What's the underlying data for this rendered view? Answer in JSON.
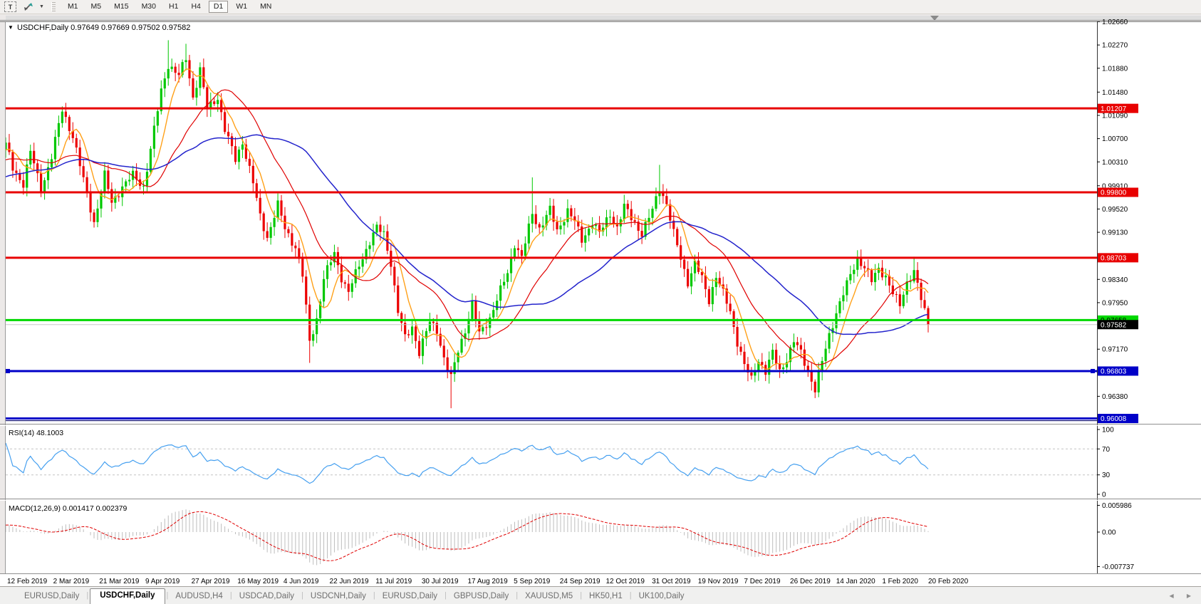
{
  "toolbar": {
    "text_tool_label": "T",
    "arrange_tool": "arrange-windows",
    "timeframes": [
      "M1",
      "M5",
      "M15",
      "M30",
      "H1",
      "H4",
      "D1",
      "W1",
      "MN"
    ],
    "active_timeframe": "D1"
  },
  "window": {
    "title_symbol": "USDCHF,Daily",
    "ohlc": {
      "open": "0.97649",
      "high": "0.97669",
      "low": "0.97502",
      "close": "0.97582"
    }
  },
  "chart_data": {
    "type": "candlestick",
    "symbol": "USDCHF",
    "timeframe": "Daily",
    "ylim": {
      "top": 1.02642,
      "bottom": 0.95919
    },
    "y_ticks": [
      "1.02660",
      "1.02270",
      "1.01880",
      "1.01480",
      "1.01090",
      "1.00700",
      "1.00310",
      "0.99910",
      "0.99520",
      "0.99130",
      "0.98340",
      "0.97950",
      "0.97170",
      "0.96380"
    ],
    "x_dates": [
      "12 Feb 2019",
      "2 Mar 2019",
      "21 Mar 2019",
      "9 Apr 2019",
      "27 Apr 2019",
      "16 May 2019",
      "4 Jun 2019",
      "22 Jun 2019",
      "11 Jul 2019",
      "30 Jul 2019",
      "17 Aug 2019",
      "5 Sep 2019",
      "24 Sep 2019",
      "12 Oct 2019",
      "31 Oct 2019",
      "19 Nov 2019",
      "7 Dec 2019",
      "26 Dec 2019",
      "14 Jan 2020",
      "1 Feb 2020",
      "20 Feb 2020"
    ],
    "candle_count": 262,
    "up_color": "#00C800",
    "down_color": "#EC0000",
    "anchors": [
      [
        0,
        1.006
      ],
      [
        2,
        1.002
      ],
      [
        5,
        0.9995
      ],
      [
        7,
        1.0048
      ],
      [
        10,
        0.9985
      ],
      [
        13,
        1.004
      ],
      [
        16,
        1.0118
      ],
      [
        19,
        1.0075
      ],
      [
        22,
        1.0
      ],
      [
        25,
        0.993
      ],
      [
        28,
        1.0008
      ],
      [
        30,
        0.9962
      ],
      [
        33,
        0.999
      ],
      [
        36,
        1.0008
      ],
      [
        39,
        0.999
      ],
      [
        41,
        1.0052
      ],
      [
        44,
        1.015
      ],
      [
        46,
        1.0195
      ],
      [
        49,
        1.0175
      ],
      [
        51,
        1.0205
      ],
      [
        53,
        1.014
      ],
      [
        55,
        1.0185
      ],
      [
        57,
        1.012
      ],
      [
        60,
        1.014
      ],
      [
        62,
        1.0085
      ],
      [
        65,
        1.0035
      ],
      [
        67,
        1.0065
      ],
      [
        70,
        0.9995
      ],
      [
        72,
        0.994
      ],
      [
        74,
        0.9905
      ],
      [
        77,
        0.9958
      ],
      [
        79,
        0.992
      ],
      [
        82,
        0.9888
      ],
      [
        84,
        0.984
      ],
      [
        86,
        0.973
      ],
      [
        88,
        0.9768
      ],
      [
        90,
        0.9835
      ],
      [
        93,
        0.9878
      ],
      [
        95,
        0.9838
      ],
      [
        97,
        0.9812
      ],
      [
        100,
        0.9858
      ],
      [
        103,
        0.9898
      ],
      [
        105,
        0.992
      ],
      [
        107,
        0.991
      ],
      [
        109,
        0.9862
      ],
      [
        111,
        0.978
      ],
      [
        113,
        0.9735
      ],
      [
        115,
        0.9755
      ],
      [
        117,
        0.9712
      ],
      [
        120,
        0.9762
      ],
      [
        122,
        0.975
      ],
      [
        124,
        0.9702
      ],
      [
        126,
        0.9668
      ],
      [
        128,
        0.9715
      ],
      [
        130,
        0.975
      ],
      [
        132,
        0.9792
      ],
      [
        134,
        0.9742
      ],
      [
        137,
        0.977
      ],
      [
        139,
        0.98
      ],
      [
        142,
        0.9845
      ],
      [
        144,
        0.9895
      ],
      [
        146,
        0.987
      ],
      [
        149,
        0.9945
      ],
      [
        151,
        0.992
      ],
      [
        154,
        0.995
      ],
      [
        156,
        0.9915
      ],
      [
        159,
        0.995
      ],
      [
        161,
        0.993
      ],
      [
        163,
        0.99
      ],
      [
        166,
        0.993
      ],
      [
        168,
        0.991
      ],
      [
        171,
        0.9945
      ],
      [
        173,
        0.992
      ],
      [
        175,
        0.9955
      ],
      [
        178,
        0.993
      ],
      [
        180,
        0.991
      ],
      [
        183,
        0.995
      ],
      [
        185,
        0.999
      ],
      [
        187,
        0.996
      ],
      [
        189,
        0.991
      ],
      [
        191,
        0.987
      ],
      [
        193,
        0.983
      ],
      [
        195,
        0.986
      ],
      [
        197,
        0.9835
      ],
      [
        199,
        0.98
      ],
      [
        201,
        0.984
      ],
      [
        203,
        0.981
      ],
      [
        205,
        0.978
      ],
      [
        207,
        0.973
      ],
      [
        209,
        0.969
      ],
      [
        211,
        0.9665
      ],
      [
        213,
        0.97
      ],
      [
        215,
        0.968
      ],
      [
        217,
        0.971
      ],
      [
        219,
        0.968
      ],
      [
        221,
        0.9702
      ],
      [
        223,
        0.973
      ],
      [
        225,
        0.971
      ],
      [
        227,
        0.968
      ],
      [
        229,
        0.965
      ],
      [
        231,
        0.9695
      ],
      [
        233,
        0.974
      ],
      [
        235,
        0.978
      ],
      [
        237,
        0.981
      ],
      [
        239,
        0.984
      ],
      [
        241,
        0.987
      ],
      [
        243,
        0.9855
      ],
      [
        245,
        0.983
      ],
      [
        247,
        0.9852
      ],
      [
        249,
        0.984
      ],
      [
        251,
        0.981
      ],
      [
        253,
        0.979
      ],
      [
        255,
        0.983
      ],
      [
        257,
        0.9848
      ],
      [
        259,
        0.98
      ],
      [
        261,
        0.97582
      ]
    ],
    "spikes": [
      {
        "i": 16,
        "high": 1.0124
      },
      {
        "i": 46,
        "high": 1.0235
      },
      {
        "i": 51,
        "high": 1.0229
      },
      {
        "i": 86,
        "low": 0.9694
      },
      {
        "i": 126,
        "low": 0.9618
      },
      {
        "i": 149,
        "high": 1.0005
      },
      {
        "i": 185,
        "high": 1.0026
      },
      {
        "i": 229,
        "low": 0.964
      },
      {
        "i": 257,
        "high": 0.9872
      }
    ],
    "warmup": {
      "count": 50,
      "start": 0.994,
      "end": 1.0055
    },
    "moving_averages": [
      {
        "name": "fast",
        "period": 7,
        "color": "#FFA018",
        "width": 1.4
      },
      {
        "name": "medium",
        "period": 21,
        "color": "#E00000",
        "width": 1.2
      },
      {
        "name": "slow",
        "period": 45,
        "color": "#2323CC",
        "width": 1.5
      }
    ],
    "levels": [
      {
        "price": 1.01207,
        "label": "1.01207",
        "color": "#E80000",
        "width": 3,
        "style": "solid",
        "text": "#FFFFFF"
      },
      {
        "price": 0.998,
        "label": "0.99800",
        "color": "#E80000",
        "width": 3,
        "style": "solid",
        "text": "#FFFFFF"
      },
      {
        "price": 0.98703,
        "label": "0.98703",
        "color": "#E80000",
        "width": 3,
        "style": "solid",
        "text": "#FFFFFF"
      },
      {
        "price": 0.97658,
        "label": "0.97658",
        "color": "#00D800",
        "width": 3,
        "style": "solid",
        "text": "#000000"
      },
      {
        "price": 0.96803,
        "label": "0.96803",
        "color": "#0000C8",
        "width": 3,
        "style": "squares",
        "text": "#FFFFFF"
      },
      {
        "price": 0.96008,
        "label": "0.96008",
        "color": "#0000C8",
        "width": 3,
        "style": "double",
        "text": "#FFFFFF"
      }
    ],
    "current_price": {
      "value": 0.97582,
      "label": "0.97582",
      "line_color": "#C8C8C8",
      "box_color": "#000000"
    },
    "indicators": {
      "rsi": {
        "label": "RSI(14)",
        "value_text": "48.1003",
        "period": 14,
        "axis_labels": [
          "100",
          "70",
          "30",
          "0"
        ],
        "axis_values": [
          100,
          70,
          30,
          0
        ],
        "level_lines": [
          70,
          30
        ],
        "color": "#46A0F0"
      },
      "macd": {
        "label": "MACD(12,26,9)",
        "main_value": "0.001417",
        "signal_value": "0.002379",
        "fast": 12,
        "slow": 26,
        "signal": 9,
        "axis_labels": [
          "0.005986",
          "0.00",
          "-0.007737"
        ],
        "axis_values": [
          0.005986,
          0,
          -0.007737
        ],
        "hist_color": "#BDBDBD",
        "signal_color": "#E00000"
      }
    }
  },
  "tabs": {
    "items": [
      "EURUSD,Daily",
      "USDCHF,Daily",
      "AUDUSD,H4",
      "USDCAD,Daily",
      "USDCNH,Daily",
      "EURUSD,Daily",
      "GBPUSD,Daily",
      "XAUUSD,M5",
      "HK50,H1",
      "UK100,Daily"
    ],
    "active_index": 1,
    "arrow_left": "◀",
    "arrow_right": "▶"
  }
}
